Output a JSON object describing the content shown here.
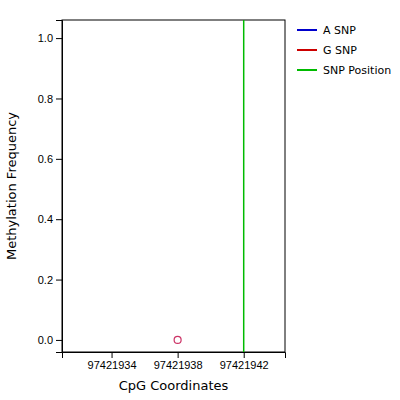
{
  "chart_data": {
    "type": "scatter",
    "xlabel": "CpG Coordinates",
    "ylabel": "Methylation Frequency",
    "xlim": [
      97421931,
      97421944.5
    ],
    "ylim": [
      -0.04,
      1.06
    ],
    "xticks": [
      97421934,
      97421938,
      97421942
    ],
    "yticks": [
      {
        "value": 0.0,
        "label": "0.0"
      },
      0.2,
      0.4,
      0.6,
      0.8,
      {
        "value": 1.0,
        "label": "1.0"
      }
    ],
    "grid": false,
    "legend": "right",
    "series": [
      {
        "name": "A SNP",
        "type": "line",
        "color": "#0000CC",
        "x": [],
        "values": []
      },
      {
        "name": "G SNP",
        "type": "scatter",
        "color": "#CC0000",
        "colors": [
          "#CC3366"
        ],
        "marker": "open-circle",
        "x": [
          97421938
        ],
        "values": [
          0.0
        ]
      },
      {
        "name": "SNP Position",
        "type": "vline",
        "color": "#00BB00",
        "x": [
          97421942
        ]
      }
    ]
  }
}
